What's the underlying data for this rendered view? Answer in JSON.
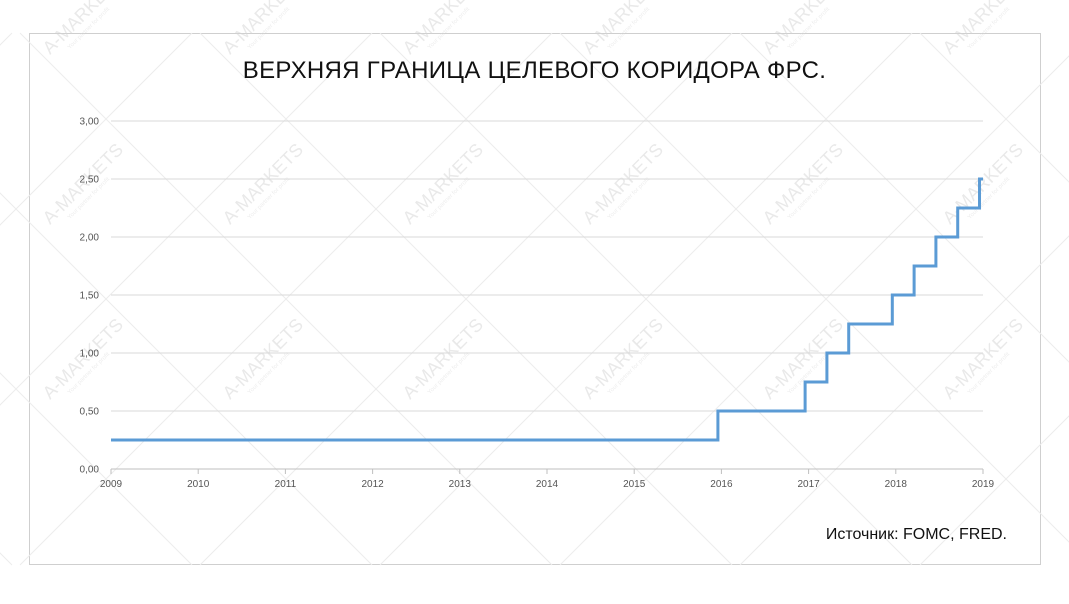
{
  "chart_data": {
    "type": "line",
    "title": "ВЕРХНЯЯ ГРАНИЦА ЦЕЛЕВОГО КОРИДОРА ФРС.",
    "source": "Источник: FOMC, FRED.",
    "step": true,
    "xlabel": "",
    "ylabel": "",
    "xlim": [
      2009,
      2019
    ],
    "ylim": [
      0,
      3
    ],
    "x_ticks": [
      "2009",
      "2010",
      "2011",
      "2012",
      "2013",
      "2014",
      "2015",
      "2016",
      "2017",
      "2018",
      "2019"
    ],
    "y_ticks": [
      "0,00",
      "0,50",
      "1,00",
      "1,50",
      "2,00",
      "2,50",
      "3,00"
    ],
    "grid": true,
    "line_color": "#5b9bd5",
    "series": [
      {
        "x": [
          2009.0,
          2015.96,
          2016.96,
          2017.21,
          2017.46,
          2017.96,
          2018.21,
          2018.46,
          2018.71,
          2018.96,
          2019.0
        ],
        "values": [
          0.25,
          0.5,
          0.75,
          1.0,
          1.25,
          1.5,
          1.75,
          2.0,
          2.25,
          2.5,
          2.5
        ]
      }
    ]
  },
  "watermark": {
    "text": "A-MARKETS",
    "tagline": "Your partner for profit"
  }
}
